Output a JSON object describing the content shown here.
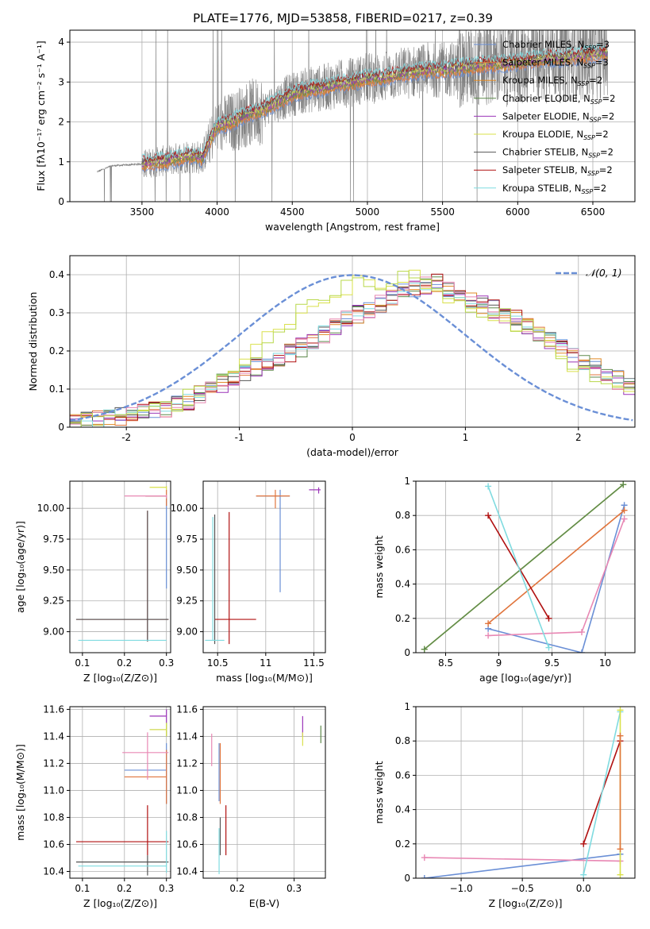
{
  "figure_title": "PLATE=1776, MJD=53858, FIBERID=0217, z=0.39",
  "colors": {
    "Chabrier MILES": "#6a8fd6",
    "Salpeter MILES": "#e0743c",
    "Kroupa MILES": "#e08a26",
    "Chabrier ELODIE": "#5f8a4c",
    "Salpeter ELODIE": "#9b34b8",
    "Kroupa ELODIE": "#d9e04a",
    "Chabrier STELIB": "#555555",
    "Salpeter STELIB": "#b01010",
    "Kroupa STELIB": "#7fdbe0",
    "gaussian": "#6a8fd6",
    "observed": "#808080",
    "pink": "#e888b4",
    "yellowgreen": "#b8d84a"
  },
  "chart_data": [
    {
      "id": "spectrum",
      "type": "line",
      "xlabel": "wavelength [Angstrom, rest frame]",
      "ylabel": "Flux [fλ10⁻¹⁷ erg cm⁻² s⁻¹ A⁻¹]",
      "xlim": [
        3020,
        6780
      ],
      "ylim": [
        0,
        4.3
      ],
      "xticks": [
        3500,
        4000,
        4500,
        5000,
        5500,
        6000,
        6500
      ],
      "yticks": [
        0,
        1,
        2,
        3,
        4
      ],
      "legend_position": "top-right",
      "legend": [
        {
          "label": "Chabrier MILES, N",
          "sub": "SSP",
          "tail": "=3",
          "color_key": "Chabrier MILES"
        },
        {
          "label": "Salpeter MILES, N",
          "sub": "SSP",
          "tail": "=3",
          "color_key": "Salpeter MILES"
        },
        {
          "label": "Kroupa MILES, N",
          "sub": "SSP",
          "tail": "=2",
          "color_key": "Kroupa MILES"
        },
        {
          "label": "Chabrier ELODIE, N",
          "sub": "SSP",
          "tail": "=2",
          "color_key": "Chabrier ELODIE"
        },
        {
          "label": "Salpeter ELODIE, N",
          "sub": "SSP",
          "tail": "=2",
          "color_key": "Salpeter ELODIE"
        },
        {
          "label": "Kroupa ELODIE, N",
          "sub": "SSP",
          "tail": "=2",
          "color_key": "Kroupa ELODIE"
        },
        {
          "label": "Chabrier STELIB, N",
          "sub": "SSP",
          "tail": "=2",
          "color_key": "Chabrier STELIB"
        },
        {
          "label": "Salpeter STELIB, N",
          "sub": "SSP",
          "tail": "=2",
          "color_key": "Salpeter STELIB"
        },
        {
          "label": "Kroupa STELIB, N",
          "sub": "SSP",
          "tail": "=2",
          "color_key": "Kroupa STELIB"
        }
      ],
      "model_curve": {
        "x": [
          3200,
          3300,
          3400,
          3500,
          3600,
          3700,
          3800,
          3900,
          4000,
          4100,
          4200,
          4300,
          4400,
          4500,
          4600,
          4700,
          4800,
          4900,
          5000,
          5100,
          5200,
          5300,
          5400,
          5500,
          5600,
          5700,
          5800,
          5900,
          6000,
          6100,
          6200,
          6300,
          6400,
          6500,
          6600
        ],
        "y": [
          0.75,
          0.9,
          0.92,
          0.95,
          1.0,
          1.05,
          1.15,
          1.1,
          1.9,
          2.0,
          2.2,
          2.3,
          2.5,
          2.7,
          2.8,
          2.85,
          2.95,
          3.0,
          3.1,
          3.1,
          3.2,
          3.25,
          3.3,
          3.3,
          3.35,
          3.4,
          3.45,
          3.45,
          3.5,
          3.55,
          3.6,
          3.6,
          3.65,
          3.7,
          3.75
        ]
      },
      "observed_range": [
        3200,
        6600
      ],
      "model_range": [
        3500,
        6600
      ]
    },
    {
      "id": "residuals",
      "type": "line",
      "xlabel": "(data-model)/error",
      "ylabel": "Normed distribution",
      "xlim": [
        -2.5,
        2.5
      ],
      "ylim": [
        0,
        0.45
      ],
      "xticks": [
        -2,
        -1,
        0,
        1,
        2
      ],
      "yticks": [
        0.0,
        0.1,
        0.2,
        0.3,
        0.4
      ],
      "legend_position": "top-right",
      "gaussian_label": "𝒩(0, 1)",
      "bin_width": 0.1,
      "hist_model": {
        "x": [
          -2.5,
          -2.0,
          -1.5,
          -1.0,
          -0.5,
          0.0,
          0.5,
          0.75,
          1.0,
          1.5,
          2.0,
          2.5
        ],
        "y": [
          0.01,
          0.03,
          0.06,
          0.14,
          0.2,
          0.29,
          0.36,
          0.38,
          0.34,
          0.28,
          0.18,
          0.1
        ]
      },
      "hist_model_b": {
        "x": [
          -2.5,
          -2.0,
          -1.5,
          -1.0,
          -0.5,
          0.0,
          0.5,
          1.0,
          1.5,
          2.0,
          2.5
        ],
        "y": [
          0.01,
          0.03,
          0.07,
          0.17,
          0.29,
          0.37,
          0.4,
          0.33,
          0.27,
          0.15,
          0.1
        ]
      }
    },
    {
      "id": "age-vs-Z",
      "type": "scatter",
      "xlabel": "Z [log₁₀(Z/Z⊙)]",
      "ylabel": "age  [log₁₀(age/yr)]",
      "xlim": [
        0.07,
        0.31
      ],
      "ylim": [
        8.83,
        10.22
      ],
      "xticks": [
        0.1,
        0.2,
        0.3
      ],
      "yticks": [
        9.0,
        9.25,
        9.5,
        9.75,
        10.0
      ],
      "ytick_labels": [
        "9.00",
        "9.25",
        "9.50",
        "9.75",
        "10.00"
      ],
      "points": [
        {
          "x": 0.255,
          "y": 9.1,
          "xerr": [
            0.17,
            0.05
          ],
          "yerr": [
            0.18,
            0.88
          ],
          "color_key": "Salpeter STELIB"
        },
        {
          "x": 0.255,
          "y": 9.1,
          "xerr": [
            0.17,
            0.05
          ],
          "yerr": [
            0.18,
            0.88
          ],
          "color_key": "Chabrier STELIB"
        },
        {
          "x": 0.3,
          "y": 8.93,
          "xerr": [
            0.21,
            0.0
          ],
          "yerr": [
            0.0,
            0.0
          ],
          "color_key": "Kroupa STELIB"
        },
        {
          "x": 0.3,
          "y": 10.1,
          "xerr": [
            0.05,
            0.0
          ],
          "yerr": [
            0.75,
            0.0
          ],
          "color_key": "Chabrier MILES"
        },
        {
          "x": 0.3,
          "y": 10.1,
          "xerr": [
            0.05,
            0.0
          ],
          "yerr": [
            0.08,
            0.05
          ],
          "color_key": "Salpeter MILES"
        },
        {
          "x": 0.3,
          "y": 10.17,
          "xerr": [
            0.04,
            0.0
          ],
          "yerr": [
            0.02,
            0.01
          ],
          "color_key": "Kroupa ELODIE"
        },
        {
          "x": 0.3,
          "y": 10.1,
          "xerr": [
            0.1,
            0.0
          ],
          "yerr": [
            0.02,
            0.01
          ],
          "color_key": "pink"
        }
      ]
    },
    {
      "id": "age-vs-mass",
      "type": "scatter",
      "xlabel": "mass [log₁₀(M/M⊙)]",
      "ylabel": "",
      "xlim": [
        10.35,
        11.62
      ],
      "ylim": [
        8.83,
        10.22
      ],
      "xticks": [
        10.5,
        11.0,
        11.5
      ],
      "yticks": [
        9.0,
        9.25,
        9.5,
        9.75,
        10.0
      ],
      "ytick_labels": [
        "9.00",
        "9.25",
        "9.50",
        "9.75",
        "10.00"
      ],
      "points": [
        {
          "x": 10.62,
          "y": 9.1,
          "xerr": [
            0.15,
            0.28
          ],
          "yerr": [
            0.2,
            0.87
          ],
          "color_key": "Salpeter STELIB"
        },
        {
          "x": 10.47,
          "y": 9.1,
          "xerr": [
            0.0,
            0.0
          ],
          "yerr": [
            0.2,
            0.85
          ],
          "color_key": "Chabrier STELIB"
        },
        {
          "x": 10.45,
          "y": 8.93,
          "xerr": [
            0.08,
            0.12
          ],
          "yerr": [
            0.0,
            1.0
          ],
          "color_key": "Kroupa STELIB"
        },
        {
          "x": 11.15,
          "y": 10.1,
          "xerr": [
            0.25,
            0.1
          ],
          "yerr": [
            0.78,
            0.05
          ],
          "color_key": "Chabrier MILES"
        },
        {
          "x": 11.1,
          "y": 10.1,
          "xerr": [
            0.2,
            0.15
          ],
          "yerr": [
            0.1,
            0.05
          ],
          "color_key": "Salpeter MILES"
        },
        {
          "x": 11.55,
          "y": 10.15,
          "xerr": [
            0.1,
            0.02
          ],
          "yerr": [
            0.03,
            0.02
          ],
          "color_key": "Salpeter ELODIE"
        }
      ]
    },
    {
      "id": "weight-vs-age",
      "type": "line",
      "xlabel": "age  [log₁₀(age/yr)]",
      "ylabel": "mass weight",
      "xlim": [
        8.22,
        10.28
      ],
      "ylim": [
        0,
        1.0
      ],
      "xticks": [
        8.5,
        9.0,
        9.5,
        10.0
      ],
      "yticks": [
        0.0,
        0.2,
        0.4,
        0.6,
        0.8,
        1.0
      ],
      "series": [
        {
          "color_key": "Chabrier MILES",
          "x": [
            8.9,
            9.78,
            10.18
          ],
          "y": [
            0.14,
            0.0,
            0.86
          ]
        },
        {
          "color_key": "Salpeter MILES",
          "x": [
            8.9,
            10.18
          ],
          "y": [
            0.17,
            0.83
          ]
        },
        {
          "color_key": "pink",
          "x": [
            8.9,
            9.78,
            10.18
          ],
          "y": [
            0.1,
            0.12,
            0.78
          ]
        },
        {
          "color_key": "Kroupa ELODIE",
          "x": [
            8.3,
            10.17
          ],
          "y": [
            0.02,
            0.98
          ]
        },
        {
          "color_key": "Chabrier ELODIE",
          "x": [
            8.3,
            10.17
          ],
          "y": [
            0.02,
            0.98
          ]
        },
        {
          "color_key": "Salpeter STELIB",
          "x": [
            8.9,
            9.47
          ],
          "y": [
            0.8,
            0.2
          ]
        },
        {
          "color_key": "Kroupa STELIB",
          "x": [
            8.9,
            9.47
          ],
          "y": [
            0.97,
            0.03
          ]
        }
      ]
    },
    {
      "id": "mass-vs-Z",
      "type": "scatter",
      "xlabel": "Z [log₁₀(Z/Z⊙)]",
      "ylabel": "mass [log₁₀(M/M⊙)]",
      "xlim": [
        0.07,
        0.31
      ],
      "ylim": [
        10.35,
        11.62
      ],
      "xticks": [
        0.1,
        0.2,
        0.3
      ],
      "yticks": [
        10.4,
        10.6,
        10.8,
        11.0,
        11.2,
        11.4,
        11.6
      ],
      "ytick_labels": [
        "10.4",
        "10.6",
        "10.8",
        "11.0",
        "11.2",
        "11.4",
        "11.6"
      ],
      "points": [
        {
          "x": 0.255,
          "y": 10.62,
          "xerr": [
            0.17,
            0.05
          ],
          "yerr": [
            0.1,
            0.27
          ],
          "color_key": "Salpeter STELIB"
        },
        {
          "x": 0.255,
          "y": 10.47,
          "xerr": [
            0.17,
            0.05
          ],
          "yerr": [
            0.1,
            0.05
          ],
          "color_key": "Chabrier STELIB"
        },
        {
          "x": 0.3,
          "y": 10.44,
          "xerr": [
            0.21,
            0.0
          ],
          "yerr": [
            0.05,
            0.26
          ],
          "color_key": "Kroupa STELIB"
        },
        {
          "x": 0.3,
          "y": 11.15,
          "xerr": [
            0.1,
            0.0
          ],
          "yerr": [
            0.25,
            0.2
          ],
          "color_key": "Chabrier MILES"
        },
        {
          "x": 0.3,
          "y": 11.1,
          "xerr": [
            0.1,
            0.0
          ],
          "yerr": [
            0.2,
            0.2
          ],
          "color_key": "Salpeter MILES"
        },
        {
          "x": 0.255,
          "y": 11.28,
          "xerr": [
            0.06,
            0.05
          ],
          "yerr": [
            0.2,
            0.15
          ],
          "color_key": "pink"
        },
        {
          "x": 0.3,
          "y": 11.55,
          "xerr": [
            0.04,
            0.0
          ],
          "yerr": [
            0.05,
            0.05
          ],
          "color_key": "Salpeter ELODIE"
        },
        {
          "x": 0.3,
          "y": 11.45,
          "xerr": [
            0.04,
            0.0
          ],
          "yerr": [
            0.05,
            0.05
          ],
          "color_key": "Chabrier ELODIE"
        },
        {
          "x": 0.3,
          "y": 11.45,
          "xerr": [
            0.04,
            0.0
          ],
          "yerr": [
            0.05,
            0.05
          ],
          "color_key": "Kroupa ELODIE"
        }
      ]
    },
    {
      "id": "mass-vs-ebv",
      "type": "scatter",
      "xlabel": "E(B-V)",
      "ylabel": "",
      "xlim": [
        0.14,
        0.355
      ],
      "ylim": [
        10.35,
        11.62
      ],
      "xticks": [
        0.2,
        0.3
      ],
      "yticks": [
        10.4,
        10.6,
        10.8,
        11.0,
        11.2,
        11.4,
        11.6
      ],
      "ytick_labels": [
        "10.4",
        "10.6",
        "10.8",
        "11.0",
        "11.2",
        "11.4",
        "11.6"
      ],
      "points": [
        {
          "x": 0.18,
          "y": 10.62,
          "xerr": [
            0.0,
            0.0
          ],
          "yerr": [
            0.1,
            0.27
          ],
          "color_key": "Salpeter STELIB"
        },
        {
          "x": 0.17,
          "y": 10.62,
          "xerr": [
            0.0,
            0.0
          ],
          "yerr": [
            0.1,
            0.18
          ],
          "color_key": "Chabrier STELIB"
        },
        {
          "x": 0.168,
          "y": 10.44,
          "xerr": [
            0.0,
            0.0
          ],
          "yerr": [
            0.06,
            0.28
          ],
          "color_key": "Kroupa STELIB"
        },
        {
          "x": 0.168,
          "y": 11.15,
          "xerr": [
            0.0,
            0.0
          ],
          "yerr": [
            0.23,
            0.2
          ],
          "color_key": "Chabrier MILES"
        },
        {
          "x": 0.17,
          "y": 11.1,
          "xerr": [
            0.0,
            0.0
          ],
          "yerr": [
            0.2,
            0.25
          ],
          "color_key": "Salpeter MILES"
        },
        {
          "x": 0.155,
          "y": 11.28,
          "xerr": [
            0.0,
            0.0
          ],
          "yerr": [
            0.1,
            0.14
          ],
          "color_key": "pink"
        },
        {
          "x": 0.315,
          "y": 11.45,
          "xerr": [
            0.0,
            0.0
          ],
          "yerr": [
            0.05,
            0.1
          ],
          "color_key": "Salpeter ELODIE"
        },
        {
          "x": 0.347,
          "y": 11.42,
          "xerr": [
            0.0,
            0.0
          ],
          "yerr": [
            0.07,
            0.06
          ],
          "color_key": "Chabrier ELODIE"
        },
        {
          "x": 0.315,
          "y": 11.38,
          "xerr": [
            0.0,
            0.0
          ],
          "yerr": [
            0.05,
            0.05
          ],
          "color_key": "Kroupa ELODIE"
        }
      ]
    },
    {
      "id": "weight-vs-Z",
      "type": "line",
      "xlabel": "Z [log₁₀(Z/Z⊙)]",
      "ylabel": "mass weight",
      "xlim": [
        -1.37,
        0.42
      ],
      "ylim": [
        0,
        1.0
      ],
      "xticks": [
        -1.0,
        -0.5,
        0.0
      ],
      "xtick_labels": [
        "−1.0",
        "−0.5",
        "0.0"
      ],
      "yticks": [
        0.0,
        0.2,
        0.4,
        0.6,
        0.8,
        1.0
      ],
      "series": [
        {
          "color_key": "Chabrier MILES",
          "x": [
            -1.3,
            0.3
          ],
          "y": [
            0.0,
            0.14
          ]
        },
        {
          "color_key": "pink",
          "x": [
            -1.3,
            0.3
          ],
          "y": [
            0.12,
            0.1
          ]
        },
        {
          "color_key": "Salpeter STELIB",
          "x": [
            0.0,
            0.3
          ],
          "y": [
            0.2,
            0.8
          ]
        },
        {
          "color_key": "Kroupa STELIB",
          "x": [
            0.0,
            0.3
          ],
          "y": [
            0.02,
            0.97
          ]
        },
        {
          "color_key": "Kroupa ELODIE",
          "x": [
            0.3,
            0.3
          ],
          "y": [
            0.02,
            0.98
          ]
        },
        {
          "color_key": "Salpeter MILES",
          "x": [
            0.3,
            0.3
          ],
          "y": [
            0.17,
            0.83
          ]
        }
      ]
    }
  ]
}
